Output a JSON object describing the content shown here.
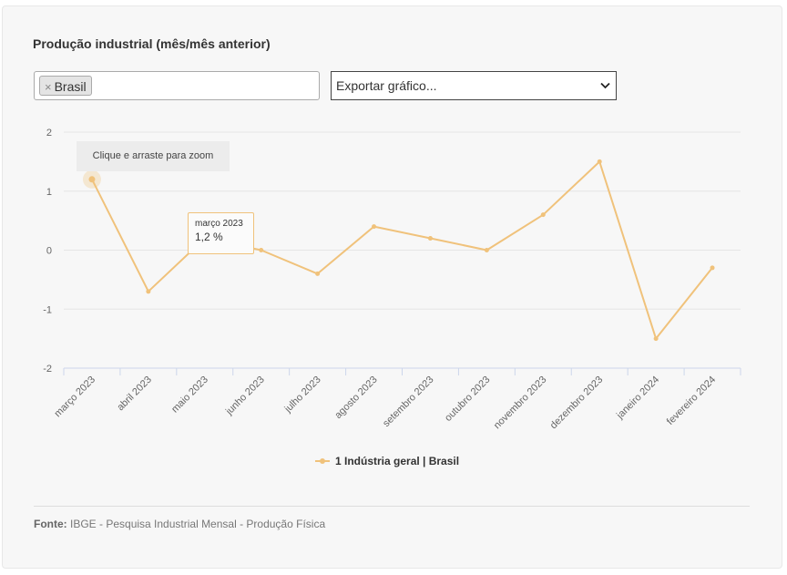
{
  "header": {
    "title": "Produção industrial (mês/mês anterior)"
  },
  "filters": {
    "tag_remove": "×",
    "tag_label": "Brasil",
    "export_label": "Exportar gráfico..."
  },
  "chart_hint": "Clique e arraste para zoom",
  "tooltip": {
    "date": "março 2023",
    "value": "1,2 %"
  },
  "chart_data": {
    "type": "line",
    "categories": [
      "março 2023",
      "abril 2023",
      "maio 2023",
      "junho 2023",
      "julho 2023",
      "agosto 2023",
      "setembro 2023",
      "outubro 2023",
      "novembro 2023",
      "dezembro 2023",
      "janeiro 2024",
      "fevereiro 2024"
    ],
    "series": [
      {
        "name": "1 Indústria geral | Brasil",
        "values": [
          1.2,
          -0.7,
          0.2,
          0.0,
          -0.4,
          0.4,
          0.2,
          0.0,
          0.6,
          1.5,
          -1.5,
          -0.3
        ]
      }
    ],
    "yticks": [
      "2",
      "1",
      "0",
      "-1",
      "-2"
    ],
    "ylim": [
      -2,
      2
    ],
    "grid": true,
    "legend_position": "bottom-center",
    "highlighted_index": 0
  },
  "colors": {
    "series": "#f0c27b",
    "grid": "#e6e6e6",
    "axis": "#ccd6eb"
  },
  "footer": {
    "source_label": "Fonte:",
    "source_text": "IBGE - Pesquisa Industrial Mensal - Produção Física"
  }
}
